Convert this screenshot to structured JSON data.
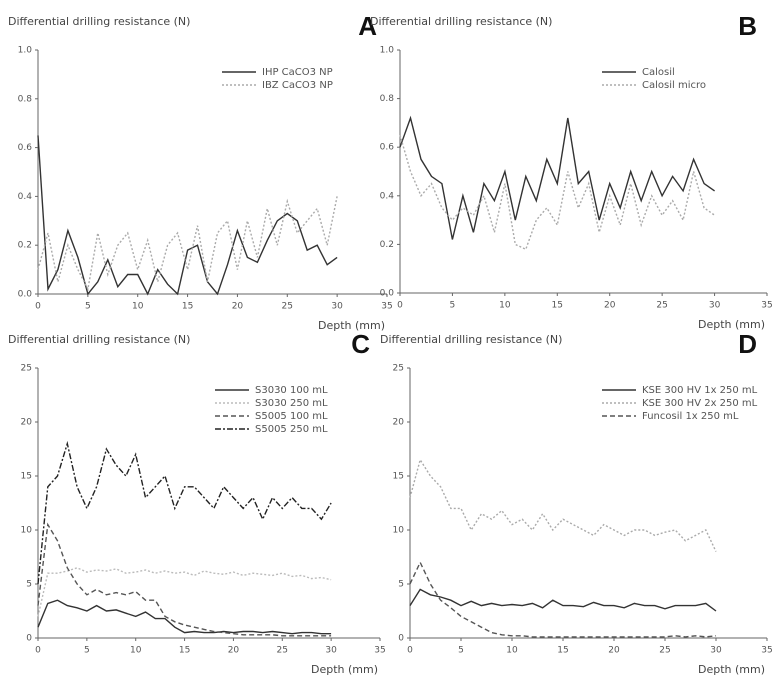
{
  "chart_data": [
    {
      "type": "line",
      "panel": "A",
      "ylabel": "Differential drilling resistance (N)",
      "xlabel": "Depth (mm)",
      "x": [
        0,
        1,
        2,
        3,
        4,
        5,
        6,
        7,
        8,
        9,
        10,
        11,
        12,
        13,
        14,
        15,
        16,
        17,
        18,
        19,
        20,
        21,
        22,
        23,
        24,
        25,
        26,
        27,
        28,
        29,
        30
      ],
      "xlim": [
        0,
        35
      ],
      "xticks": [
        0,
        5,
        10,
        15,
        20,
        25,
        30,
        35
      ],
      "ylim": [
        0,
        1
      ],
      "yticks": [
        {
          "value": 0,
          "label": "0.0"
        },
        0.2,
        0.4,
        0.6,
        0.8,
        {
          "value": 1,
          "label": "1.0"
        }
      ],
      "legend": "upper right",
      "series": [
        {
          "name": "IHP CaCO3 NP",
          "color": "#333333",
          "style": "solid",
          "values": [
            0.65,
            0.02,
            0.1,
            0.26,
            0.15,
            0.0,
            0.05,
            0.14,
            0.03,
            0.08,
            0.08,
            0.0,
            0.1,
            0.04,
            0.0,
            0.18,
            0.2,
            0.05,
            0.0,
            0.12,
            0.26,
            0.15,
            0.13,
            0.22,
            0.3,
            0.33,
            0.3,
            0.18,
            0.2,
            0.12,
            0.15
          ]
        },
        {
          "name": "IBZ CaCO3 NP",
          "color": "#aaaaaa",
          "style": "dotted",
          "values": [
            0.1,
            0.25,
            0.05,
            0.2,
            0.1,
            0.02,
            0.25,
            0.08,
            0.2,
            0.25,
            0.1,
            0.22,
            0.05,
            0.2,
            0.25,
            0.1,
            0.28,
            0.05,
            0.25,
            0.3,
            0.1,
            0.3,
            0.15,
            0.35,
            0.2,
            0.38,
            0.25,
            0.3,
            0.35,
            0.2,
            0.4
          ]
        }
      ]
    },
    {
      "type": "line",
      "panel": "B",
      "ylabel": "Differential drilling resistance (N)",
      "xlabel": "Depth (mm)",
      "x": [
        0,
        1,
        2,
        3,
        4,
        5,
        6,
        7,
        8,
        9,
        10,
        11,
        12,
        13,
        14,
        15,
        16,
        17,
        18,
        19,
        20,
        21,
        22,
        23,
        24,
        25,
        26,
        27,
        28,
        29,
        30
      ],
      "xlim": [
        0,
        35
      ],
      "xticks": [
        0,
        5,
        10,
        15,
        20,
        25,
        30,
        35
      ],
      "ylim": [
        0,
        1
      ],
      "yticks": [
        {
          "value": 0,
          "label": "0.0"
        },
        0.2,
        0.4,
        0.6,
        0.8,
        {
          "value": 1,
          "label": "1.0"
        }
      ],
      "legend": "upper right",
      "series": [
        {
          "name": "Calosil",
          "color": "#333333",
          "style": "solid",
          "values": [
            0.6,
            0.72,
            0.55,
            0.48,
            0.45,
            0.22,
            0.4,
            0.25,
            0.45,
            0.38,
            0.5,
            0.3,
            0.48,
            0.38,
            0.55,
            0.45,
            0.72,
            0.45,
            0.5,
            0.3,
            0.45,
            0.35,
            0.5,
            0.38,
            0.5,
            0.4,
            0.48,
            0.42,
            0.55,
            0.45,
            0.42
          ]
        },
        {
          "name": "Calosil micro",
          "color": "#aaaaaa",
          "style": "dotted",
          "values": [
            0.65,
            0.5,
            0.4,
            0.45,
            0.35,
            0.3,
            0.35,
            0.32,
            0.4,
            0.25,
            0.45,
            0.2,
            0.18,
            0.3,
            0.35,
            0.28,
            0.5,
            0.35,
            0.45,
            0.25,
            0.4,
            0.28,
            0.45,
            0.28,
            0.4,
            0.32,
            0.38,
            0.3,
            0.5,
            0.35,
            0.32
          ]
        }
      ]
    },
    {
      "type": "line",
      "panel": "C",
      "ylabel": "Differential drilling resistance (N)",
      "xlabel": "Depth (mm)",
      "x": [
        0,
        1,
        2,
        3,
        4,
        5,
        6,
        7,
        8,
        9,
        10,
        11,
        12,
        13,
        14,
        15,
        16,
        17,
        18,
        19,
        20,
        21,
        22,
        23,
        24,
        25,
        26,
        27,
        28,
        29,
        30
      ],
      "xlim": [
        0,
        35
      ],
      "xticks": [
        0,
        5,
        10,
        15,
        20,
        25,
        30,
        35
      ],
      "ylim": [
        0,
        25
      ],
      "yticks": [
        0,
        5,
        10,
        15,
        20,
        25
      ],
      "legend": "upper right",
      "series": [
        {
          "name": "S3030 100 mL",
          "color": "#333333",
          "style": "solid",
          "values": [
            1,
            3.2,
            3.5,
            3,
            2.8,
            2.5,
            3,
            2.5,
            2.6,
            2.3,
            2,
            2.4,
            1.8,
            1.8,
            1,
            0.5,
            0.6,
            0.5,
            0.5,
            0.6,
            0.5,
            0.6,
            0.6,
            0.5,
            0.6,
            0.5,
            0.4,
            0.5,
            0.5,
            0.4,
            0.4
          ]
        },
        {
          "name": "S3030 250 mL",
          "color": "#bbbbbb",
          "style": "dotted",
          "values": [
            2,
            6,
            6,
            6.2,
            6.5,
            6.1,
            6.3,
            6.2,
            6.4,
            6,
            6.1,
            6.3,
            6,
            6.2,
            6,
            6.1,
            5.8,
            6.2,
            6,
            5.9,
            6.1,
            5.8,
            6,
            5.9,
            5.8,
            6,
            5.7,
            5.8,
            5.5,
            5.6,
            5.4
          ]
        },
        {
          "name": "S5005 100 mL",
          "color": "#555555",
          "style": "dashed",
          "values": [
            3,
            10.5,
            9,
            6.5,
            5,
            4,
            4.5,
            4,
            4.2,
            4,
            4.3,
            3.5,
            3.5,
            2,
            1.5,
            1.2,
            1,
            0.8,
            0.6,
            0.5,
            0.4,
            0.3,
            0.3,
            0.3,
            0.3,
            0.2,
            0.2,
            0.2,
            0.2,
            0.2,
            0.2
          ]
        },
        {
          "name": "S5005 250 mL",
          "color": "#222222",
          "style": "dashdot",
          "values": [
            5,
            14,
            15,
            18,
            14,
            12,
            14,
            17.5,
            16,
            15,
            17,
            13,
            14,
            15,
            12,
            14,
            14,
            13,
            12,
            14,
            13,
            12,
            13,
            11,
            13,
            12,
            13,
            12,
            12,
            11,
            12.5
          ]
        }
      ]
    },
    {
      "type": "line",
      "panel": "D",
      "ylabel": "Differential drilling resistance (N)",
      "xlabel": "Depth (mm)",
      "x": [
        0,
        1,
        2,
        3,
        4,
        5,
        6,
        7,
        8,
        9,
        10,
        11,
        12,
        13,
        14,
        15,
        16,
        17,
        18,
        19,
        20,
        21,
        22,
        23,
        24,
        25,
        26,
        27,
        28,
        29,
        30
      ],
      "xlim": [
        0,
        35
      ],
      "xticks": [
        0,
        5,
        10,
        15,
        20,
        25,
        30,
        35
      ],
      "ylim": [
        0,
        25
      ],
      "yticks": [
        0,
        5,
        10,
        15,
        20,
        25
      ],
      "legend": "upper right",
      "series": [
        {
          "name": "KSE 300 HV 1x 250 mL",
          "color": "#333333",
          "style": "solid",
          "values": [
            3,
            4.5,
            4,
            3.8,
            3.5,
            3,
            3.4,
            3,
            3.2,
            3,
            3.1,
            3,
            3.2,
            2.8,
            3.5,
            3,
            3,
            2.9,
            3.3,
            3,
            3,
            2.8,
            3.2,
            3,
            3,
            2.7,
            3,
            3,
            3,
            3.2,
            2.5
          ]
        },
        {
          "name": "KSE 300 HV 2x 250 mL",
          "color": "#aaaaaa",
          "style": "dotted",
          "values": [
            13,
            16.5,
            15,
            14,
            12,
            12,
            10,
            11.5,
            11,
            11.8,
            10.5,
            11,
            10,
            11.5,
            10,
            11,
            10.5,
            10,
            9.5,
            10.5,
            10,
            9.5,
            10,
            10,
            9.5,
            9.8,
            10,
            9,
            9.5,
            10,
            8
          ]
        },
        {
          "name": "Funcosil 1x 250 mL",
          "color": "#555555",
          "style": "dashed",
          "values": [
            5,
            7,
            5,
            3.5,
            2.8,
            2,
            1.5,
            1,
            0.5,
            0.3,
            0.2,
            0.2,
            0.1,
            0.1,
            0.1,
            0.1,
            0.1,
            0.1,
            0.1,
            0.1,
            0.1,
            0.1,
            0.1,
            0.1,
            0.1,
            0.1,
            0.2,
            0.1,
            0.2,
            0.1,
            0.2
          ]
        }
      ]
    }
  ]
}
